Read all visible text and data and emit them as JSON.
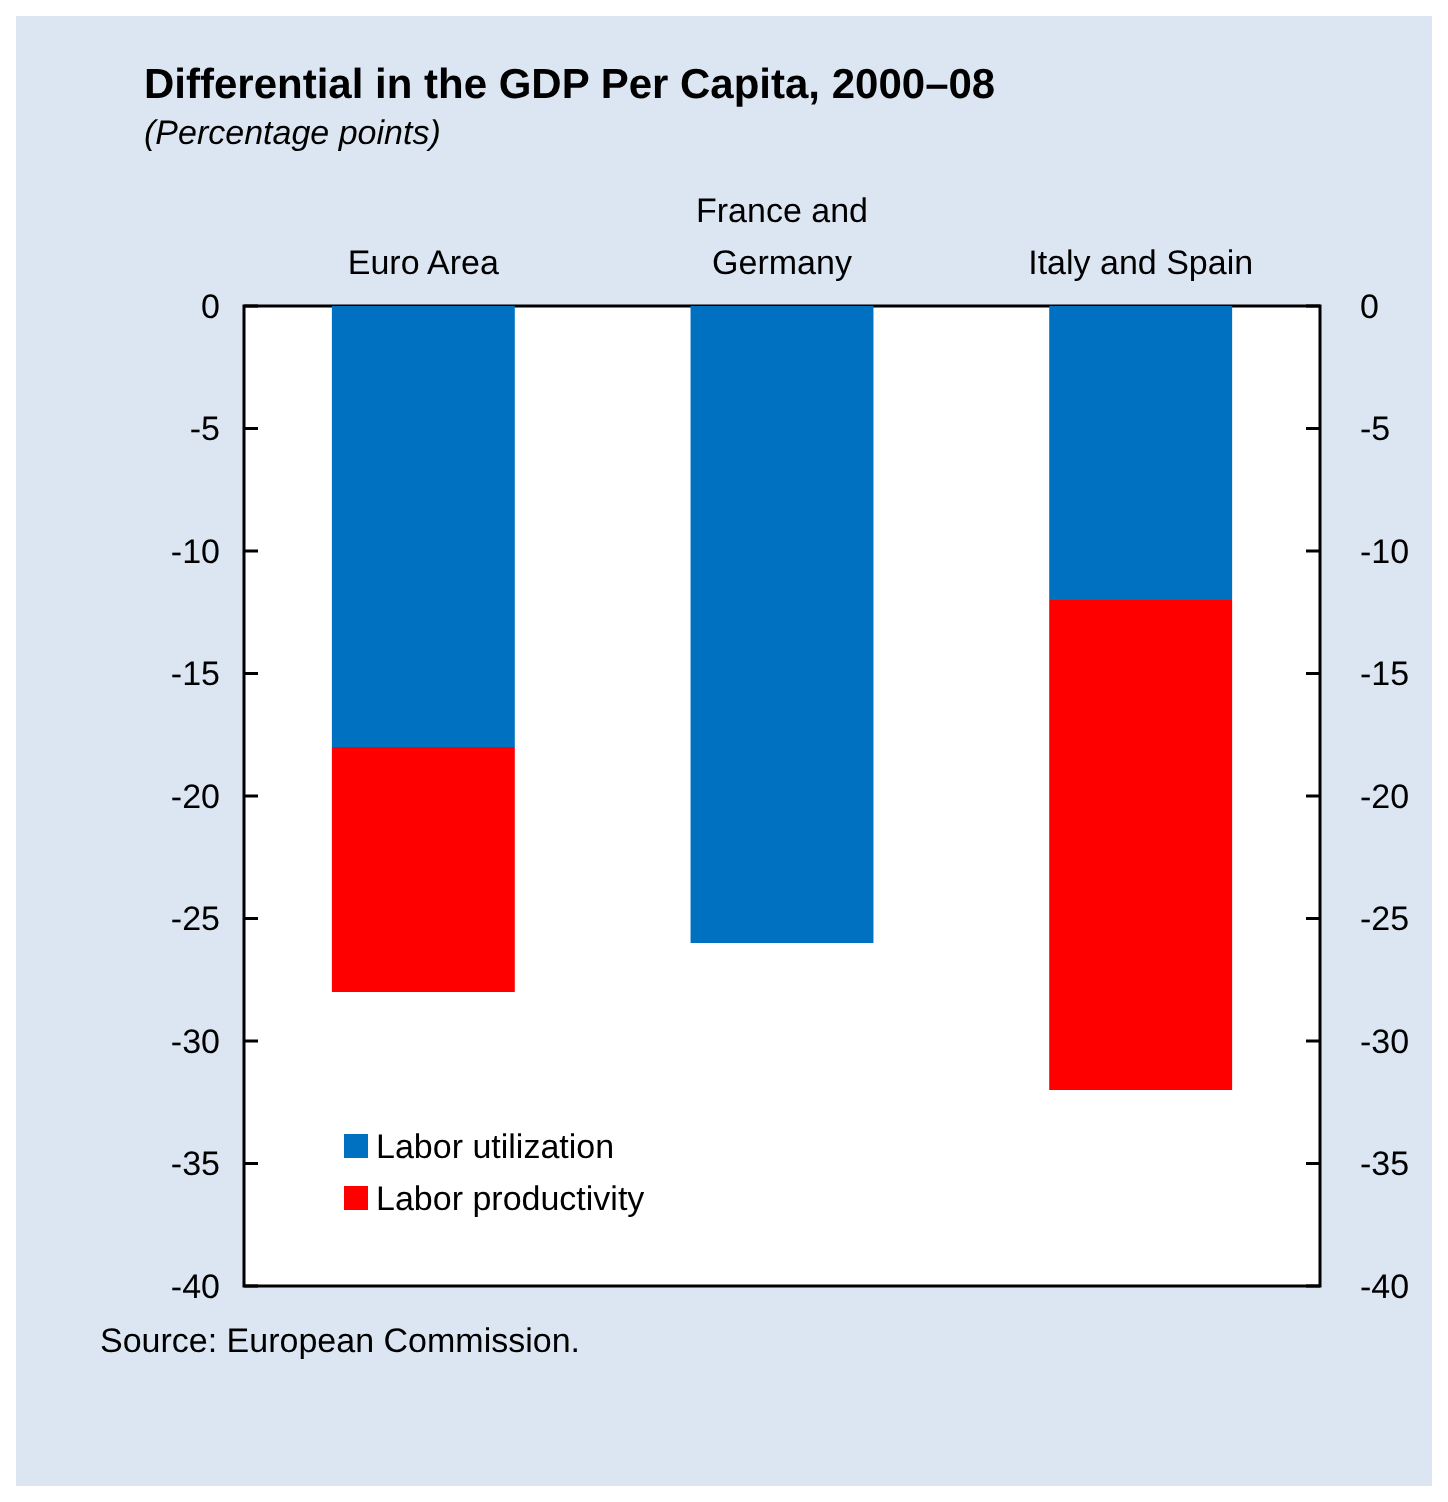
{
  "chart_data": {
    "type": "bar",
    "title": "Differential in the GDP Per Capita, 2000–08",
    "subtitle": "(Percentage points)",
    "categories": [
      "Euro Area",
      "France and Germany",
      "Italy and Spain"
    ],
    "series": [
      {
        "name": "Labor utilization",
        "color": "#0070c0",
        "values": [
          -18,
          -26,
          -12
        ]
      },
      {
        "name": "Labor productivity",
        "color": "#ff0000",
        "values": [
          -10,
          null,
          -20
        ]
      }
    ],
    "stacked": true,
    "ylim": [
      -40,
      0
    ],
    "yticks": [
      0,
      -5,
      -10,
      -15,
      -20,
      -25,
      -30,
      -35,
      -40
    ],
    "y2lim": [
      -40,
      0
    ],
    "y2ticks": [
      0,
      -5,
      -10,
      -15,
      -20,
      -25,
      -30,
      -35,
      -40
    ],
    "legend": "bottom left",
    "grid": false,
    "annotations": [
      "Source: European Commission."
    ]
  }
}
